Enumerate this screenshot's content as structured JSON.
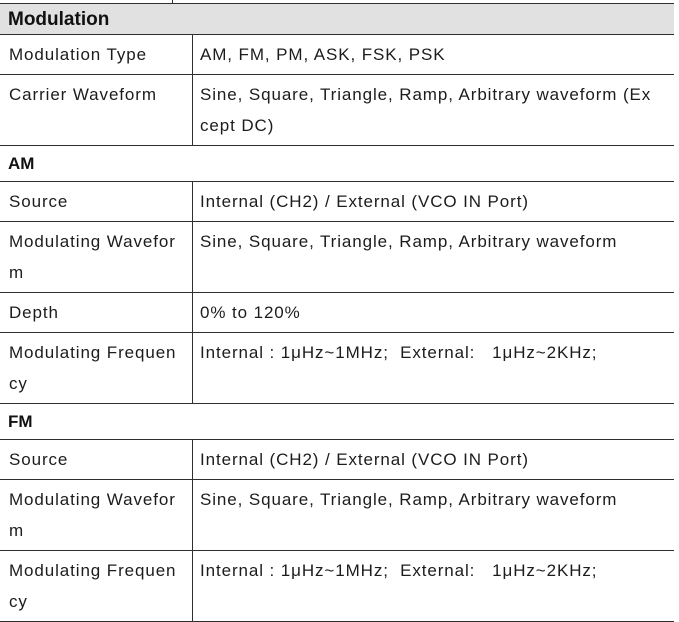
{
  "document": {
    "kind": "specification-table",
    "sections": [
      {
        "title": "Modulation",
        "rows": [
          {
            "label": "Modulation Type",
            "value": "AM, FM, PM, ASK, FSK, PSK"
          },
          {
            "label": "Carrier Waveform",
            "value": "Sine, Square, Triangle, Ramp, Arbitrary waveform (Except DC)"
          }
        ]
      },
      {
        "title": "AM",
        "rows": [
          {
            "label": "Source",
            "value": "Internal (CH2) / External (VCO IN Port)"
          },
          {
            "label": "Modulating Waveform",
            "value": "Sine, Square, Triangle, Ramp, Arbitrary waveform"
          },
          {
            "label": "Depth",
            "value": "0% to 120%"
          },
          {
            "label": "Modulating Frequency",
            "value": "Internal : 1μHz~1MHz;  External:   1μHz~2KHz;"
          }
        ]
      },
      {
        "title": "FM",
        "rows": [
          {
            "label": "Source",
            "value": "Internal (CH2) / External (VCO IN Port)"
          },
          {
            "label": "Modulating Waveform",
            "value": "Sine, Square, Triangle, Ramp, Arbitrary waveform"
          },
          {
            "label": "Modulating Frequency",
            "value": "Internal : 1μHz~1MHz;  External:   1μHz~2KHz;"
          }
        ]
      }
    ]
  },
  "colors": {
    "section_header_bg": "#e1e1e1",
    "border": "#2f2f2f",
    "text": "#1c1c1c"
  }
}
